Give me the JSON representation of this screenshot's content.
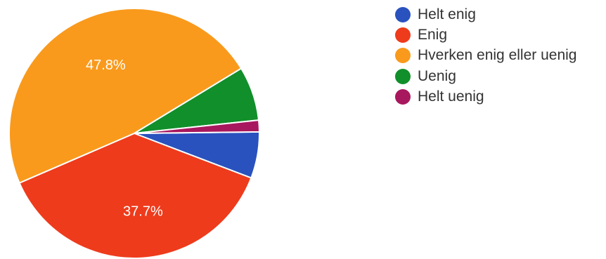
{
  "chart_data": {
    "type": "pie",
    "categories": [
      "Helt enig",
      "Enig",
      "Hverken enig eller uenig",
      "Uenig",
      "Helt uenig"
    ],
    "values": [
      6.0,
      37.7,
      47.8,
      7.0,
      1.5
    ],
    "colors": [
      "#2a52be",
      "#ee3b1c",
      "#f99a1c",
      "#118f2a",
      "#a8185e"
    ],
    "data_labels": [
      "",
      "37.7%",
      "47.8%",
      "",
      ""
    ],
    "legend_position": "right"
  }
}
